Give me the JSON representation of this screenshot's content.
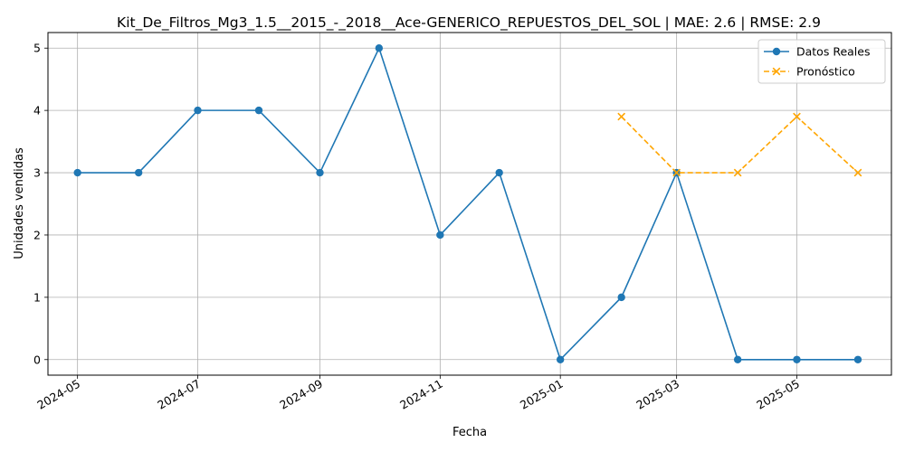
{
  "chart_data": {
    "type": "line",
    "title": "Kit_De_Filtros_Mg3_1.5__2015_-_2018__Ace-GENERICO_REPUESTOS_DEL_SOL | MAE: 2.6 | RMSE: 2.9",
    "xlabel": "Fecha",
    "ylabel": "Unidades vendidas",
    "x_ticks": [
      "2024-05",
      "2024-07",
      "2024-09",
      "2024-11",
      "2025-01",
      "2025-03",
      "2025-05"
    ],
    "y_ticks": [
      0,
      1,
      2,
      3,
      4,
      5
    ],
    "ylim": [
      -0.25,
      5.25
    ],
    "xlim": [
      "2024-04-16",
      "2025-06-18"
    ],
    "grid": true,
    "legend_position": "top-right",
    "series": [
      {
        "name": "Datos Reales",
        "color": "#1f77b4",
        "style": "solid",
        "marker": "circle",
        "x": [
          "2024-05-01",
          "2024-06-01",
          "2024-07-01",
          "2024-08-01",
          "2024-09-01",
          "2024-10-01",
          "2024-11-01",
          "2024-12-01",
          "2025-01-01",
          "2025-02-01",
          "2025-03-01",
          "2025-04-01",
          "2025-05-01",
          "2025-06-01"
        ],
        "values": [
          3,
          3,
          4,
          4,
          3,
          5,
          2,
          3,
          0,
          1,
          3,
          0,
          0,
          0
        ]
      },
      {
        "name": "Pronóstico",
        "color": "#ffa500",
        "style": "dashed",
        "marker": "x",
        "x": [
          "2025-02-01",
          "2025-03-01",
          "2025-04-01",
          "2025-05-01",
          "2025-06-01"
        ],
        "values": [
          3.9,
          3.0,
          3.0,
          3.9,
          3.0
        ]
      }
    ]
  }
}
